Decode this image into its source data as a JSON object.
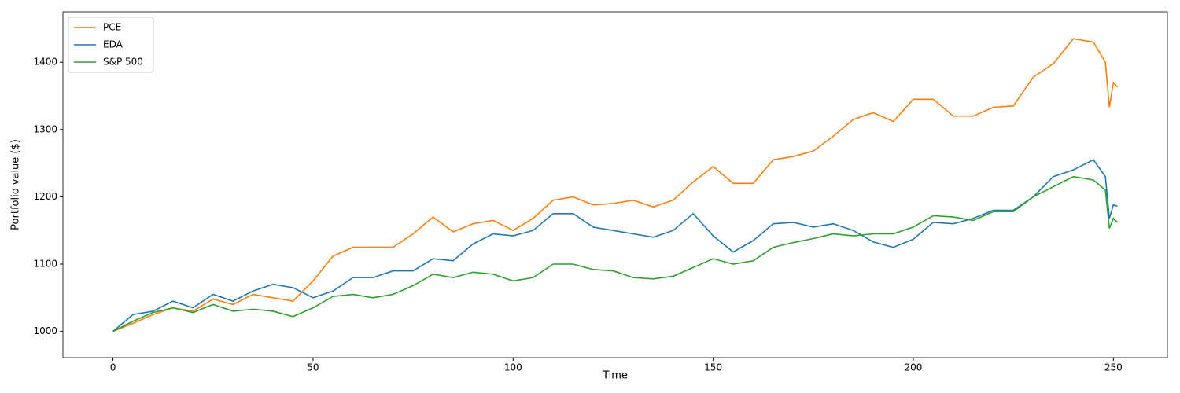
{
  "chart_data": {
    "type": "line",
    "x_label": "Time",
    "y_label": "Portfolio value ($)",
    "x": [
      0,
      5,
      10,
      15,
      20,
      25,
      30,
      35,
      40,
      45,
      50,
      55,
      60,
      65,
      70,
      75,
      80,
      85,
      90,
      95,
      100,
      105,
      110,
      115,
      120,
      125,
      130,
      135,
      140,
      145,
      150,
      155,
      160,
      165,
      170,
      175,
      180,
      185,
      190,
      195,
      200,
      205,
      210,
      215,
      220,
      225,
      230,
      235,
      240,
      245,
      248,
      249,
      250,
      251
    ],
    "series": [
      {
        "name": "PCE",
        "color": "#ff7f0e",
        "values": [
          1000,
          1012,
          1025,
          1035,
          1030,
          1048,
          1040,
          1055,
          1050,
          1045,
          1075,
          1112,
          1125,
          1125,
          1125,
          1145,
          1170,
          1148,
          1160,
          1165,
          1150,
          1168,
          1195,
          1200,
          1188,
          1190,
          1195,
          1185,
          1195,
          1222,
          1245,
          1220,
          1220,
          1255,
          1260,
          1268,
          1290,
          1315,
          1325,
          1312,
          1345,
          1345,
          1320,
          1320,
          1333,
          1335,
          1378,
          1398,
          1435,
          1430,
          1400,
          1333,
          1370,
          1363
        ]
      },
      {
        "name": "EDA",
        "color": "#1f77b4",
        "values": [
          1000,
          1025,
          1030,
          1045,
          1035,
          1055,
          1045,
          1060,
          1070,
          1065,
          1050,
          1060,
          1080,
          1080,
          1090,
          1090,
          1108,
          1105,
          1130,
          1145,
          1142,
          1150,
          1175,
          1175,
          1155,
          1150,
          1145,
          1140,
          1150,
          1175,
          1142,
          1118,
          1135,
          1160,
          1162,
          1155,
          1160,
          1150,
          1133,
          1125,
          1137,
          1162,
          1160,
          1168,
          1180,
          1180,
          1200,
          1230,
          1240,
          1255,
          1230,
          1168,
          1188,
          1186
        ]
      },
      {
        "name": "S&P 500",
        "color": "#2ca02c",
        "values": [
          1000,
          1015,
          1028,
          1035,
          1028,
          1040,
          1030,
          1033,
          1030,
          1022,
          1035,
          1052,
          1055,
          1050,
          1055,
          1068,
          1085,
          1080,
          1088,
          1085,
          1075,
          1080,
          1100,
          1100,
          1092,
          1090,
          1080,
          1078,
          1082,
          1095,
          1108,
          1100,
          1105,
          1125,
          1132,
          1138,
          1145,
          1142,
          1145,
          1145,
          1155,
          1172,
          1170,
          1165,
          1178,
          1178,
          1200,
          1215,
          1230,
          1225,
          1210,
          1153,
          1168,
          1162
        ]
      }
    ],
    "xlim": [
      -12.5,
      263.5
    ],
    "ylim": [
      961,
      1475
    ],
    "xticks": [
      0,
      50,
      100,
      150,
      200,
      250
    ],
    "yticks": [
      1000,
      1100,
      1200,
      1300,
      1400
    ],
    "legend": "upper left",
    "grid": false
  }
}
